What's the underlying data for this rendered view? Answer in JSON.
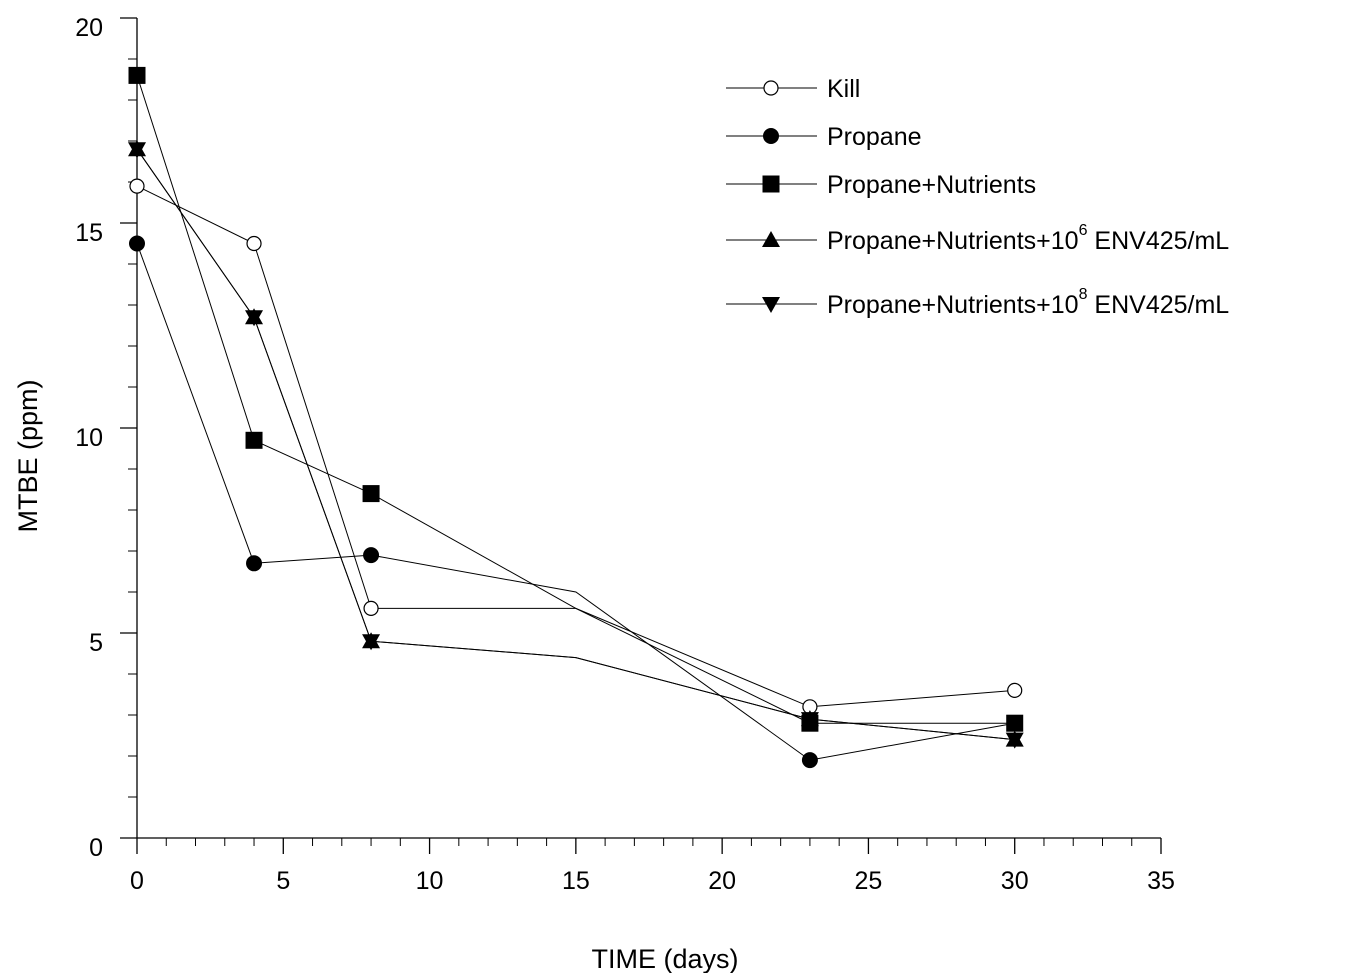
{
  "chart_data": {
    "type": "line",
    "title": "",
    "xlabel": "TIME (days)",
    "ylabel": "MTBE (ppm)",
    "xlim": [
      0,
      35
    ],
    "ylim": [
      0,
      20
    ],
    "x_ticks": [
      0,
      5,
      10,
      15,
      20,
      25,
      30,
      35
    ],
    "y_ticks": [
      0,
      5,
      10,
      15,
      20
    ],
    "x_tick_labels": [
      "0",
      "5",
      "10",
      "15",
      "20",
      "25",
      "30",
      "35"
    ],
    "y_tick_labels": [
      "0",
      "5",
      "10",
      "15",
      "20"
    ],
    "x_minor_step": 1,
    "y_minor_step": 1,
    "grid": false,
    "legend_position": "top-right",
    "series": [
      {
        "name": "Kill",
        "marker": "circle-open",
        "x": [
          0,
          4,
          8,
          15,
          23,
          30
        ],
        "y": [
          15.9,
          14.5,
          5.6,
          5.6,
          3.2,
          3.6
        ],
        "marked": [
          true,
          true,
          true,
          false,
          true,
          true
        ]
      },
      {
        "name": "Propane",
        "marker": "circle-filled",
        "x": [
          0,
          4,
          8,
          15,
          23,
          30
        ],
        "y": [
          14.5,
          6.7,
          6.9,
          6.0,
          1.9,
          2.8
        ],
        "marked": [
          true,
          true,
          true,
          false,
          true,
          true
        ]
      },
      {
        "name": "Propane+Nutrients",
        "marker": "square-filled",
        "x": [
          0,
          4,
          8,
          15,
          23,
          30
        ],
        "y": [
          18.6,
          9.7,
          8.4,
          5.6,
          2.8,
          2.8
        ],
        "marked": [
          true,
          true,
          true,
          false,
          true,
          true
        ]
      },
      {
        "name": "Propane+Nutrients+10",
        "name_sup": "6",
        "name_suffix": " ENV425/mL",
        "marker": "triangle-up",
        "x": [
          0,
          4,
          8,
          15,
          23,
          30
        ],
        "y": [
          16.8,
          12.7,
          4.8,
          4.4,
          2.9,
          2.4
        ],
        "marked": [
          true,
          true,
          true,
          false,
          true,
          true
        ]
      },
      {
        "name": "Propane+Nutrients+10",
        "name_sup": "8",
        "name_suffix": " ENV425/mL",
        "marker": "triangle-down",
        "x": [
          0,
          4,
          8,
          15,
          23,
          30
        ],
        "y": [
          16.8,
          12.7,
          4.8,
          4.4,
          2.9,
          2.4
        ],
        "marked": [
          true,
          true,
          true,
          false,
          true,
          true
        ]
      }
    ]
  }
}
